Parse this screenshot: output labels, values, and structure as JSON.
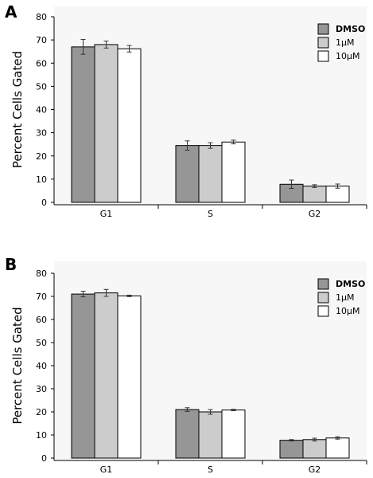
{
  "colors": {
    "dmso": "#969696",
    "one_um": "#cccccc",
    "ten_um": "#ffffff",
    "panel_bg": "#f7f7f7",
    "stroke": "#000000"
  },
  "chart_data": [
    {
      "panel": "A",
      "type": "bar",
      "title": "",
      "ylabel": "Percent Cells Gated",
      "xlabel": "",
      "ylim": [
        0,
        80
      ],
      "yticks": [
        0,
        10,
        20,
        30,
        40,
        50,
        60,
        70,
        80
      ],
      "categories": [
        "G1",
        "S",
        "G2"
      ],
      "grid": false,
      "legend_position": "top-right",
      "series": [
        {
          "name": "DMSO",
          "color_key": "dmso",
          "values": [
            67.0,
            24.5,
            7.8
          ],
          "errors": [
            3.2,
            2.0,
            1.8
          ]
        },
        {
          "name": "1μM",
          "color_key": "one_um",
          "values": [
            68.0,
            24.5,
            7.0
          ],
          "errors": [
            1.5,
            1.2,
            0.6
          ]
        },
        {
          "name": "10μM",
          "color_key": "ten_um",
          "values": [
            66.2,
            26.0,
            7.0
          ],
          "errors": [
            1.4,
            0.8,
            0.9
          ]
        }
      ]
    },
    {
      "panel": "B",
      "type": "bar",
      "title": "",
      "ylabel": "Percent Cells Gated",
      "xlabel": "",
      "ylim": [
        0,
        80
      ],
      "yticks": [
        0,
        10,
        20,
        30,
        40,
        50,
        60,
        70,
        80
      ],
      "categories": [
        "G1",
        "S",
        "G2"
      ],
      "grid": false,
      "legend_position": "top-right",
      "series": [
        {
          "name": "DMSO",
          "color_key": "dmso",
          "values": [
            71.0,
            21.0,
            7.7
          ],
          "errors": [
            1.2,
            0.8,
            0.3
          ]
        },
        {
          "name": "1μM",
          "color_key": "one_um",
          "values": [
            71.5,
            20.0,
            8.0
          ],
          "errors": [
            1.5,
            1.0,
            0.6
          ]
        },
        {
          "name": "10μM",
          "color_key": "ten_um",
          "values": [
            70.2,
            20.8,
            8.7
          ],
          "errors": [
            0.3,
            0.3,
            0.5
          ]
        }
      ]
    }
  ]
}
